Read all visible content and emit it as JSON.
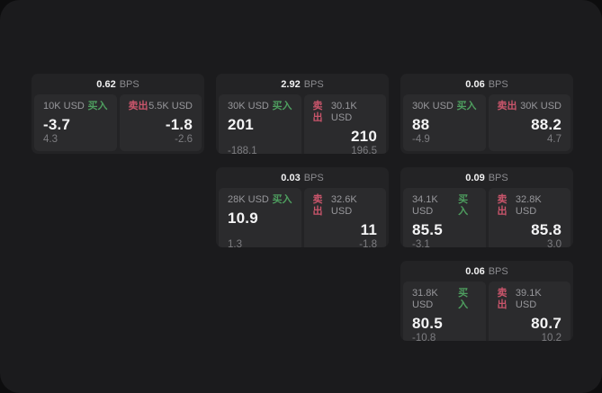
{
  "page": {
    "bps_unit": "BPS",
    "buy_label": "买入",
    "sell_label": "卖出"
  },
  "colors": {
    "backdrop": "#0d0d0e",
    "panel_bg": "#1b1b1d",
    "card_bg": "#232325",
    "tile_bg": "#2b2b2d",
    "text_primary": "#f4f4f5",
    "text_secondary": "#8b8b8f",
    "buy_green": "#4e9e5f",
    "sell_red": "#c9556b"
  },
  "cards": [
    {
      "bps": "0.62",
      "grid": {
        "row": 1,
        "col": 1
      },
      "buy": {
        "amount": "10K USD",
        "value": "-3.7",
        "sub": "4.3"
      },
      "sell": {
        "amount": "5.5K USD",
        "value": "-1.8",
        "sub": "-2.6"
      }
    },
    {
      "bps": "2.92",
      "grid": {
        "row": 1,
        "col": 2
      },
      "buy": {
        "amount": "30K USD",
        "value": "201",
        "sub": "-188.1"
      },
      "sell": {
        "amount": "30.1K USD",
        "value": "210",
        "sub": "196.5"
      }
    },
    {
      "bps": "0.06",
      "grid": {
        "row": 1,
        "col": 3
      },
      "buy": {
        "amount": "30K USD",
        "value": "88",
        "sub": "-4.9"
      },
      "sell": {
        "amount": "30K USD",
        "value": "88.2",
        "sub": "4.7"
      }
    },
    {
      "bps": "0.03",
      "grid": {
        "row": 2,
        "col": 2
      },
      "buy": {
        "amount": "28K USD",
        "value": "10.9",
        "sub": "1.3"
      },
      "sell": {
        "amount": "32.6K USD",
        "value": "11",
        "sub": "-1.8"
      }
    },
    {
      "bps": "0.09",
      "grid": {
        "row": 2,
        "col": 3
      },
      "buy": {
        "amount": "34.1K USD",
        "value": "85.5",
        "sub": "-3.1"
      },
      "sell": {
        "amount": "32.8K USD",
        "value": "85.8",
        "sub": "3.0"
      }
    },
    {
      "bps": "0.06",
      "grid": {
        "row": 3,
        "col": 3
      },
      "buy": {
        "amount": "31.8K USD",
        "value": "80.5",
        "sub": "-10.8"
      },
      "sell": {
        "amount": "39.1K USD",
        "value": "80.7",
        "sub": "10.2"
      }
    }
  ]
}
